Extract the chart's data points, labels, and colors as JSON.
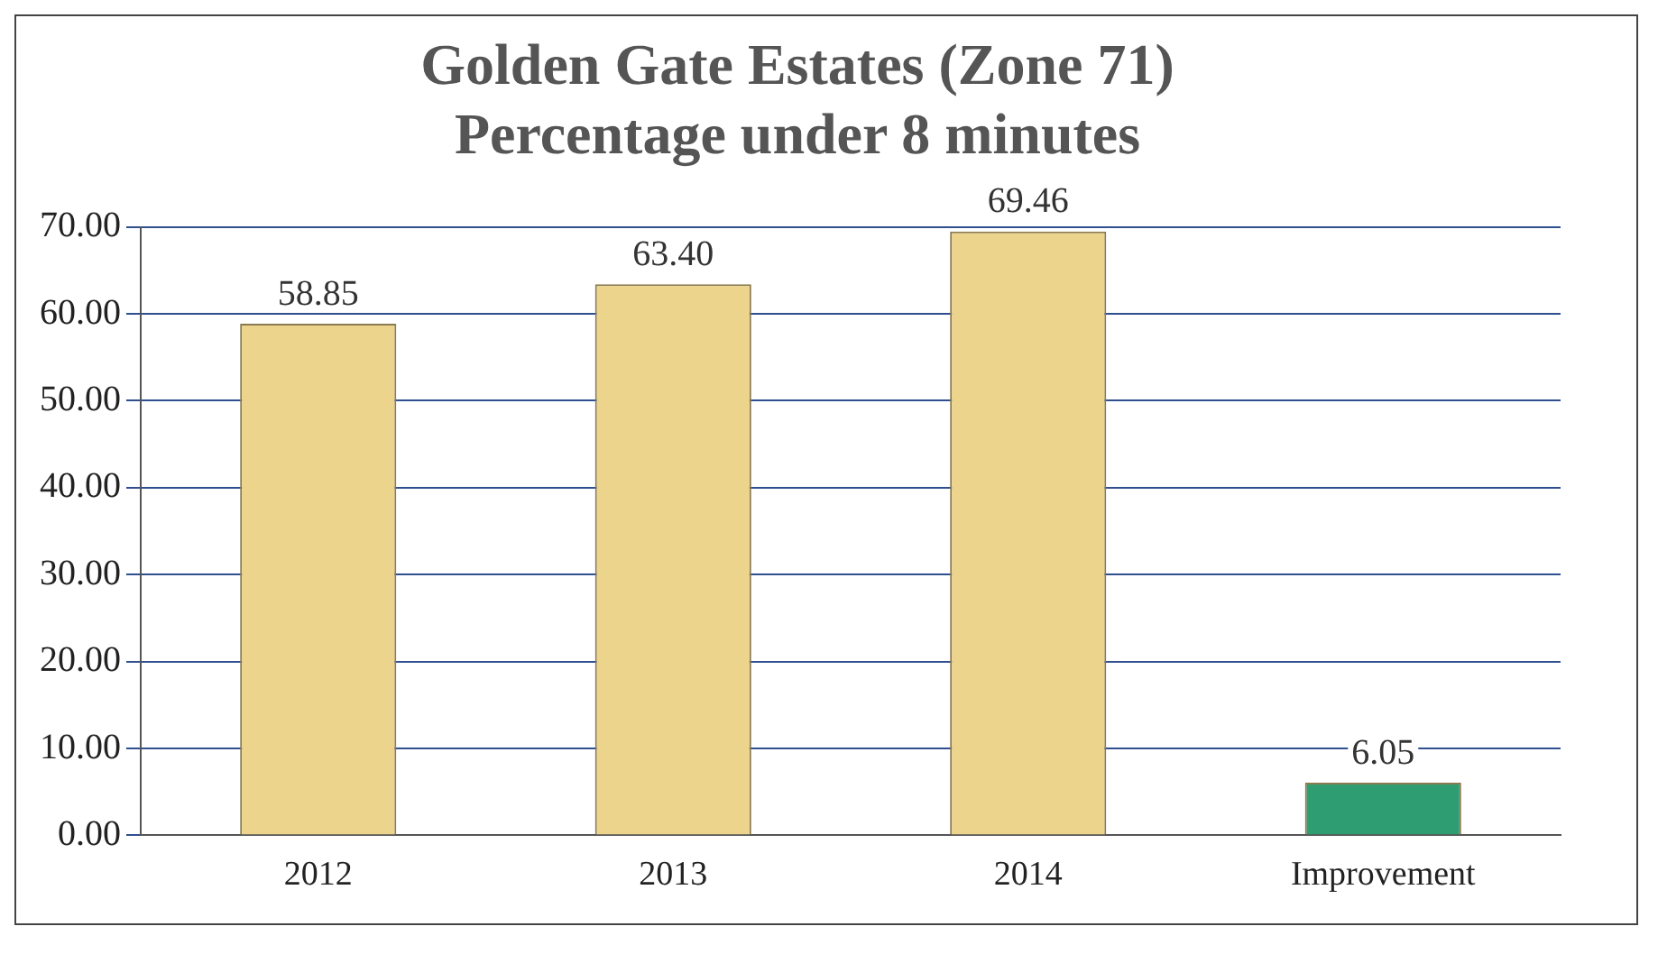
{
  "chart_data": {
    "type": "bar",
    "title": "Golden Gate Estates (Zone 71)\nPercentage under 8 minutes",
    "categories": [
      "2012",
      "2013",
      "2014",
      "Improvement"
    ],
    "values": [
      58.85,
      63.4,
      69.46,
      6.05
    ],
    "colors": [
      "#ecd48c",
      "#ecd48c",
      "#ecd48c",
      "#2e9e72"
    ],
    "value_labels": [
      "58.85",
      "63.40",
      "69.46",
      "6.05"
    ],
    "ylim": [
      0,
      70
    ],
    "yticks": [
      {
        "value": 0,
        "label": "0.00"
      },
      {
        "value": 10,
        "label": "10.00"
      },
      {
        "value": 20,
        "label": "20.00"
      },
      {
        "value": 30,
        "label": "30.00"
      },
      {
        "value": 40,
        "label": "40.00"
      },
      {
        "value": 50,
        "label": "50.00"
      },
      {
        "value": 60,
        "label": "60.00"
      },
      {
        "value": 70,
        "label": "70.00"
      }
    ],
    "grid": "y",
    "legend": false
  }
}
